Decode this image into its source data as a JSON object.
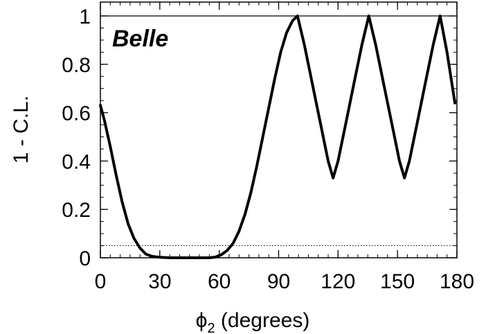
{
  "chart_data": {
    "type": "line",
    "annotation": "Belle",
    "xlabel_symbol": "ϕ",
    "xlabel_subscript": "2",
    "xlabel_suffix": " (degrees)",
    "ylabel": "1 - C.L.",
    "xlim": [
      0,
      180
    ],
    "ylim": [
      0,
      1
    ],
    "x_ticks": [
      "0",
      "30",
      "60",
      "90",
      "120",
      "150",
      "180"
    ],
    "y_ticks": [
      "0",
      "0.2",
      "0.4",
      "0.6",
      "0.8",
      "1"
    ],
    "reference_lines": [
      {
        "y": 1.0,
        "style": "solid"
      },
      {
        "y": 0.05,
        "style": "dotted"
      }
    ],
    "series": [
      {
        "x": [
          0,
          2,
          5,
          8,
          11,
          14,
          17,
          20,
          23,
          26,
          30,
          35,
          40,
          45,
          50,
          55,
          58,
          61,
          64,
          67,
          70,
          73,
          76,
          79,
          82,
          85,
          88,
          91,
          94,
          97,
          99.5,
          103,
          107,
          111,
          115,
          117.5,
          120,
          124,
          128,
          132,
          135.5,
          139,
          143,
          147,
          151,
          153.5,
          156,
          160,
          164,
          168,
          171.5,
          175,
          179
        ],
        "y": [
          0.63,
          0.57,
          0.46,
          0.34,
          0.23,
          0.14,
          0.08,
          0.04,
          0.015,
          0.006,
          0.002,
          0.0,
          0.0,
          0.0,
          0.0,
          0.0,
          0.003,
          0.012,
          0.03,
          0.06,
          0.11,
          0.18,
          0.27,
          0.38,
          0.5,
          0.62,
          0.74,
          0.85,
          0.93,
          0.98,
          1.0,
          0.88,
          0.72,
          0.56,
          0.4,
          0.33,
          0.4,
          0.56,
          0.72,
          0.88,
          1.0,
          0.88,
          0.72,
          0.56,
          0.4,
          0.33,
          0.4,
          0.56,
          0.72,
          0.88,
          1.0,
          0.85,
          0.64
        ]
      }
    ]
  }
}
